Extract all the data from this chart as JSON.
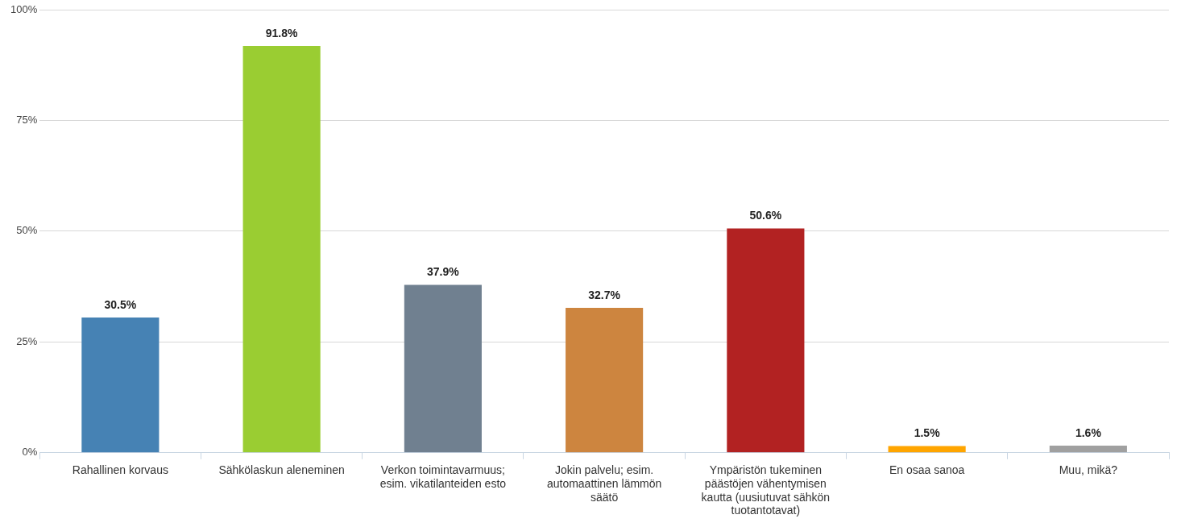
{
  "chart_data": {
    "type": "bar",
    "categories": [
      "Rahallinen korvaus",
      "Sähkölaskun aleneminen",
      "Verkon toimintavarmuus; esim. vikatilanteiden esto",
      "Jokin palvelu; esim. automaattinen lämmön säätö",
      "Ympäristön tukeminen päästöjen vähentymisen kautta (uusiutuvat sähkön tuotantotavat)",
      "En osaa sanoa",
      "Muu, mikä?"
    ],
    "values": [
      30.5,
      91.8,
      37.9,
      32.7,
      50.6,
      1.5,
      1.6
    ],
    "colors": [
      "#4682b4",
      "#9acd32",
      "#708090",
      "#cd853f",
      "#b22222",
      "#ffa500",
      "#a0a0a0"
    ],
    "ylim": [
      0,
      100
    ],
    "yticks": [
      {
        "value": 0,
        "label": "0%"
      },
      {
        "value": 25,
        "label": "25%"
      },
      {
        "value": 50,
        "label": "50%"
      },
      {
        "value": 75,
        "label": "75%"
      },
      {
        "value": 100,
        "label": "100%"
      }
    ],
    "value_labels": [
      "30.5%",
      "91.8%",
      "37.9%",
      "32.7%",
      "50.6%",
      "1.5%",
      "1.6%"
    ],
    "grid": "y",
    "legend": false
  }
}
